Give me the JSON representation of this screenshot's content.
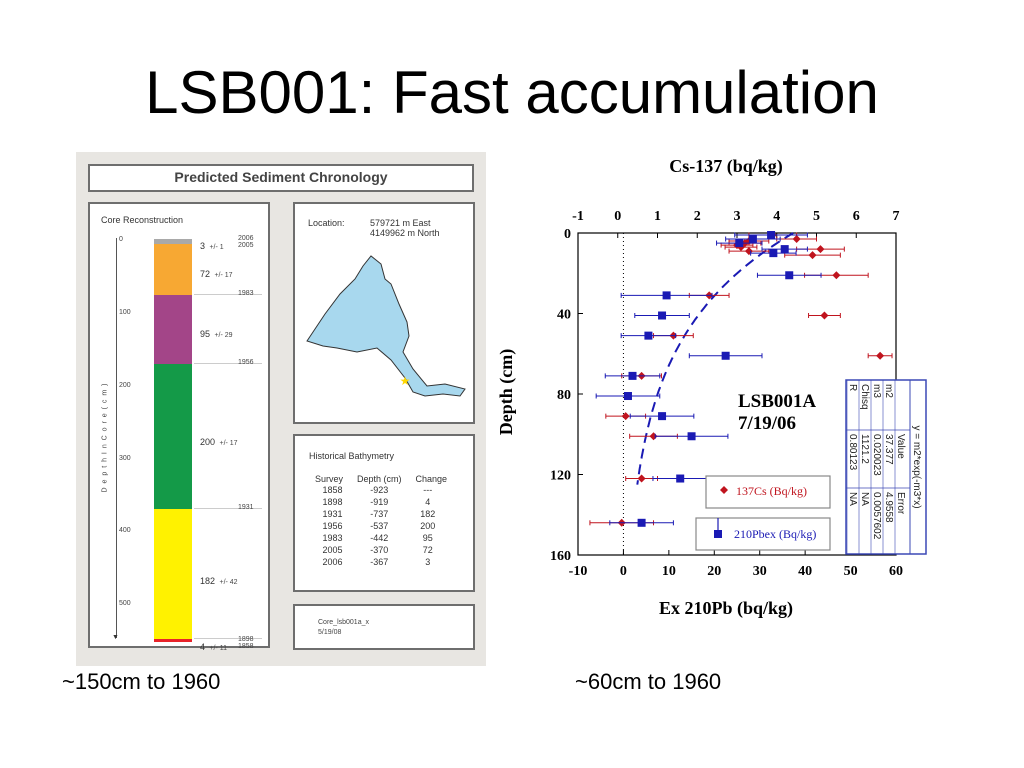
{
  "slide": {
    "title": "LSB001: Fast accumulation",
    "caption_left": "~150cm to 1960",
    "caption_right": "~60cm to 1960"
  },
  "chronology": {
    "title": "Predicted Sediment Chronology",
    "core_title": "Core Reconstruction",
    "depth_axis_label": "D e p t h   I n   C o r e   ( c m )",
    "depth_ticks": [
      "0",
      "100",
      "200",
      "300",
      "400",
      "500"
    ],
    "segments": [
      {
        "value": "3",
        "err": "+/- 1",
        "color": "#a9a9a9"
      },
      {
        "value": "72",
        "err": "+/- 17",
        "color": "#f7a833"
      },
      {
        "value": "95",
        "err": "+/- 29",
        "color": "#a34588"
      },
      {
        "value": "200",
        "err": "+/- 17",
        "color": "#149a48"
      },
      {
        "value": "182",
        "err": "+/- 42",
        "color": "#fff200"
      },
      {
        "value": "4",
        "err": "+/- 11",
        "color": "#e8232a"
      }
    ],
    "years": [
      "2006",
      "2005",
      "1983",
      "1956",
      "1931",
      "1898",
      "1858"
    ],
    "location_label": "Location:",
    "location_east": "579721 m East",
    "location_north": "4149962 m North",
    "bathy_title": "Historical Bathymetry",
    "bathy_headers": [
      "Survey",
      "Depth (cm)",
      "Change"
    ],
    "bathy_rows": [
      [
        "1858",
        "-923",
        "---"
      ],
      [
        "1898",
        "-919",
        "4"
      ],
      [
        "1931",
        "-737",
        "182"
      ],
      [
        "1956",
        "-537",
        "200"
      ],
      [
        "1983",
        "-442",
        "95"
      ],
      [
        "2005",
        "-370",
        "72"
      ],
      [
        "2006",
        "-367",
        "3"
      ]
    ],
    "file_name": "Core_lsb001a_x",
    "file_date": "5/19/08",
    "colors": {
      "lake": "#a8d8ee",
      "star": "#ffd700"
    }
  },
  "chart_data": {
    "type": "scatter",
    "title": "LSB001A 7/19/06",
    "top_axis_label": "Cs-137 (bq/kg)",
    "bottom_axis_label": "Ex 210Pb (bq/kg)",
    "ylabel": "Depth (cm)",
    "xlim_bottom": [
      -10,
      60
    ],
    "xlim_top": [
      -1,
      7
    ],
    "ylim": [
      0,
      160
    ],
    "y_inverted": true,
    "x_ticks_bottom": [
      "-10",
      "0",
      "10",
      "20",
      "30",
      "40",
      "50",
      "60"
    ],
    "x_ticks_top": [
      "-1",
      "0",
      "1",
      "2",
      "3",
      "4",
      "5",
      "6",
      "7"
    ],
    "y_ticks": [
      "0",
      "40",
      "80",
      "120",
      "160"
    ],
    "legend_position": "bottom-right",
    "series": [
      {
        "name": "137Cs (Bq/kg)",
        "axis": "top",
        "color": "#c0141e",
        "marker": "diamond",
        "points": [
          {
            "x": 3.9,
            "y": 1,
            "err": 0.6
          },
          {
            "x": 4.5,
            "y": 3,
            "err": 0.5
          },
          {
            "x": 3.3,
            "y": 4,
            "err": 0.5
          },
          {
            "x": 3.2,
            "y": 5,
            "err": 0.4
          },
          {
            "x": 3.0,
            "y": 6,
            "err": 0.4
          },
          {
            "x": 3.1,
            "y": 7,
            "err": 0.4
          },
          {
            "x": 5.1,
            "y": 8,
            "err": 0.6
          },
          {
            "x": 3.3,
            "y": 9,
            "err": 0.5
          },
          {
            "x": 4.9,
            "y": 11,
            "err": 0.7
          },
          {
            "x": 5.5,
            "y": 21,
            "err": 0.8
          },
          {
            "x": 2.3,
            "y": 31,
            "err": 0.5
          },
          {
            "x": 5.2,
            "y": 41,
            "err": 0.4
          },
          {
            "x": 1.4,
            "y": 51,
            "err": 0.5
          },
          {
            "x": 6.6,
            "y": 61,
            "err": 0.3
          },
          {
            "x": 0.6,
            "y": 71,
            "err": 0.5
          },
          {
            "x": 0.2,
            "y": 91,
            "err": 0.5
          },
          {
            "x": 0.9,
            "y": 101,
            "err": 0.6
          },
          {
            "x": 0.6,
            "y": 122,
            "err": 0.4
          },
          {
            "x": 0.1,
            "y": 144,
            "err": 0.8
          }
        ]
      },
      {
        "name": "210Pbex (Bq/kg)",
        "axis": "bottom",
        "color": "#1a1ab4",
        "marker": "square",
        "points": [
          {
            "x": 32.5,
            "y": 1,
            "err": 8
          },
          {
            "x": 28.5,
            "y": 3,
            "err": 6
          },
          {
            "x": 25.5,
            "y": 5,
            "err": 5
          },
          {
            "x": 35.5,
            "y": 8,
            "err": 5
          },
          {
            "x": 33,
            "y": 10,
            "err": 5
          },
          {
            "x": 36.5,
            "y": 21,
            "err": 7
          },
          {
            "x": 9.5,
            "y": 31,
            "err": 10
          },
          {
            "x": 8.5,
            "y": 41,
            "err": 6
          },
          {
            "x": 5.5,
            "y": 51,
            "err": 6
          },
          {
            "x": 22.5,
            "y": 61,
            "err": 8
          },
          {
            "x": 2.0,
            "y": 71,
            "err": 6
          },
          {
            "x": 1.0,
            "y": 81,
            "err": 7
          },
          {
            "x": 8.5,
            "y": 91,
            "err": 7
          },
          {
            "x": 15,
            "y": 101,
            "err": 8
          },
          {
            "x": 12.5,
            "y": 122,
            "err": 6
          },
          {
            "x": 4.0,
            "y": 144,
            "err": 7
          }
        ]
      }
    ],
    "fit": {
      "a": 37.377,
      "b": 0.020023
    },
    "fit_table": {
      "equation": "y = m2*exp(-m3*x)",
      "headers": [
        "",
        "Value",
        "Error"
      ],
      "rows": [
        [
          "m2",
          "37.377",
          "4.9558"
        ],
        [
          "m3",
          "0.020023",
          "0.0057602"
        ],
        [
          "Chisq",
          "1121.2",
          "NA"
        ],
        [
          "R",
          "0.80123",
          "NA"
        ]
      ]
    }
  }
}
